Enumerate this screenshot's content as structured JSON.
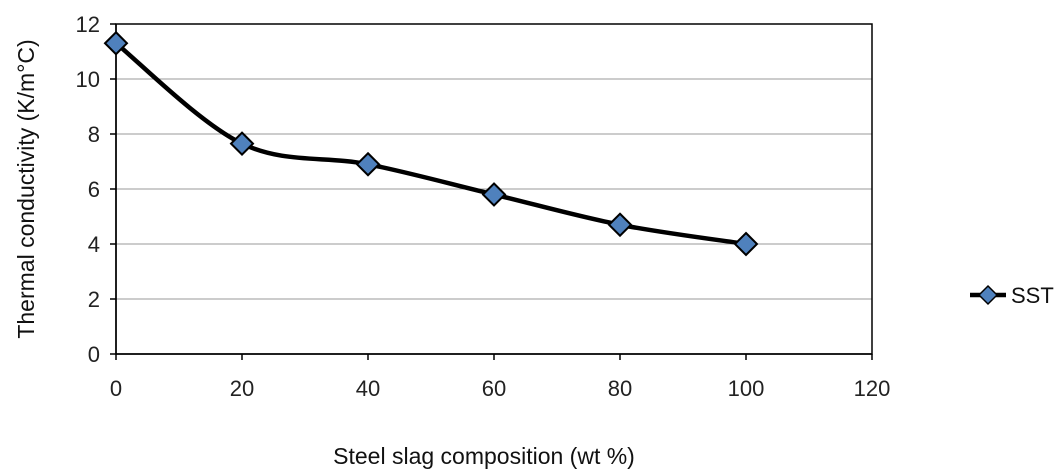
{
  "chart_data": {
    "type": "line",
    "title": "",
    "xlabel": "Steel slag composition (wt %)",
    "ylabel": "Thermal conductivity (K/m°C)",
    "xlim": [
      0,
      120
    ],
    "ylim": [
      0,
      12
    ],
    "xticks": [
      0,
      20,
      40,
      60,
      80,
      100,
      120
    ],
    "yticks": [
      0,
      2,
      4,
      6,
      8,
      10,
      12
    ],
    "grid": "horizontal",
    "legend_position": "right",
    "smooth": true,
    "series": [
      {
        "name": "SST",
        "line_color": "#000000",
        "marker": "diamond",
        "marker_color": "#4f81bd",
        "points": [
          {
            "x": 0,
            "y": 11.3
          },
          {
            "x": 20,
            "y": 7.65
          },
          {
            "x": 40,
            "y": 6.9
          },
          {
            "x": 60,
            "y": 5.8
          },
          {
            "x": 80,
            "y": 4.7
          },
          {
            "x": 100,
            "y": 4.0
          }
        ]
      }
    ]
  }
}
